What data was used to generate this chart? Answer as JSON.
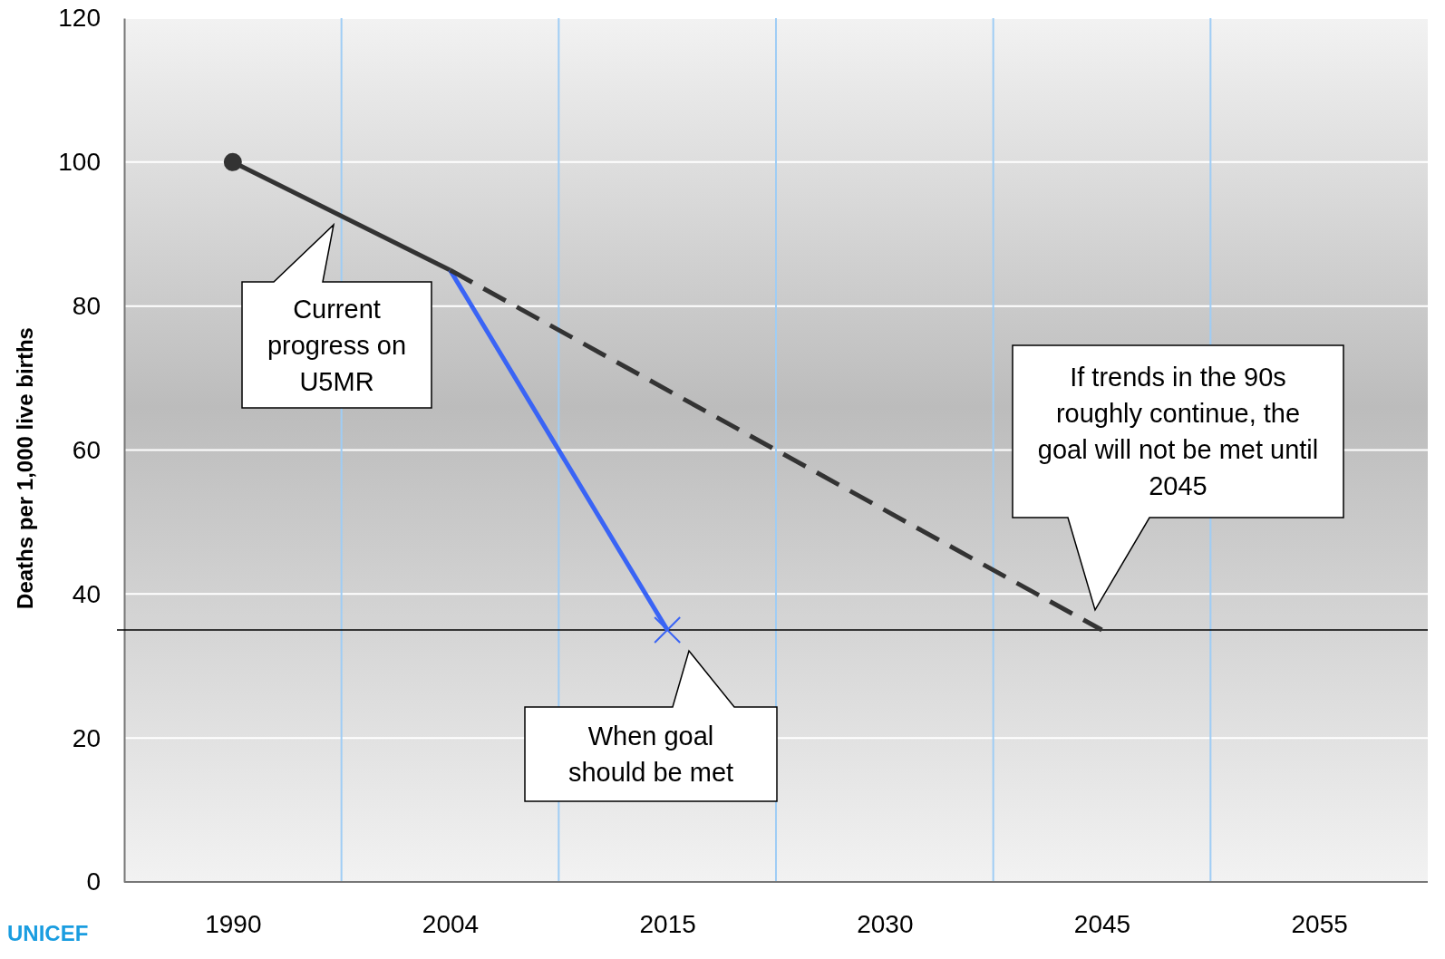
{
  "chart_data": {
    "type": "line",
    "ylabel": "Deaths per 1,000 live births",
    "categories": [
      "1990",
      "2004",
      "2015",
      "2030",
      "2045",
      "2055"
    ],
    "series": [
      {
        "color": "#333333",
        "values": [
          100,
          85,
          null,
          null,
          null,
          null
        ],
        "line_style": "solid"
      },
      {
        "type": "scatter",
        "color": "#333333",
        "values": [
          100,
          null,
          null,
          null,
          null,
          null
        ],
        "marker": "circle"
      },
      {
        "color": "#3a64f5",
        "values": [
          null,
          85,
          35,
          null,
          null,
          null
        ],
        "line_style": "solid"
      },
      {
        "type": "scatter",
        "color": "#3a64f5",
        "values": [
          null,
          null,
          35,
          null,
          null,
          null
        ],
        "marker": "cross"
      },
      {
        "color": "#333333",
        "values": [
          null,
          85,
          null,
          null,
          35,
          null
        ],
        "line_style": "dashed"
      }
    ],
    "ylim": [
      0,
      120
    ],
    "yticks": [
      0,
      20,
      40,
      60,
      80,
      100,
      120
    ],
    "grid": true,
    "ref_lines": [
      {
        "axis": "y",
        "value": 35,
        "color": "#000000"
      }
    ],
    "annotations": [
      "Current progress on U5MR",
      "When goal should be met",
      "If trends in the 90s roughly continue, the goal will not be met until 2045",
      "UNICEF"
    ]
  }
}
